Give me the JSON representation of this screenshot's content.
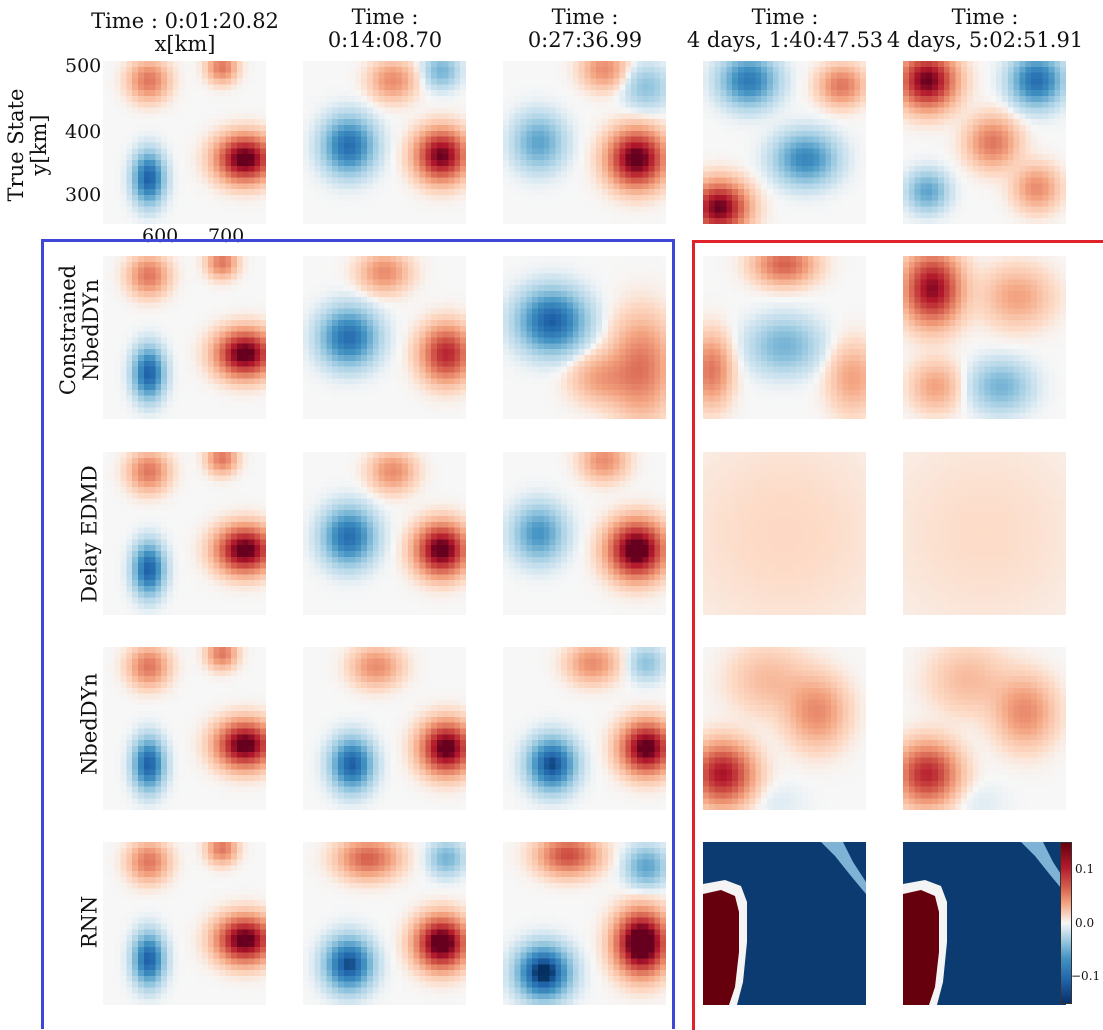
{
  "column_titles": [
    {
      "line1": "Time : 0:01:20.82",
      "line2": "x[km]"
    },
    {
      "line1": "Time :",
      "line2": "0:14:08.70"
    },
    {
      "line1": "Time :",
      "line2": "0:27:36.99"
    },
    {
      "line1": "Time :",
      "line2": "4 days, 1:40:47.53"
    },
    {
      "line1": "Time :",
      "line2": "4 days, 5:02:51.91"
    }
  ],
  "row_labels": {
    "true_state": {
      "line1": "True State",
      "line2": "y[km]"
    },
    "constrained": {
      "line1": "Constrained",
      "line2": "NbedDYn"
    },
    "delay_edmd": "Delay EDMD",
    "nbeddyn": "NbedDYn",
    "rnn": "RNN"
  },
  "colors": {
    "short_term_box": "#3f48d6",
    "long_term_box": "#e0232b",
    "cmap_low": "#08306b",
    "cmap_mid": "#f7f7f7",
    "cmap_high": "#67000d"
  },
  "chart_data": {
    "type": "heatmap",
    "colormap": "RdBu_r",
    "grid_size": [
      28,
      28
    ],
    "x_axis": {
      "label": "x[km]",
      "ticks": [
        "600",
        "700"
      ]
    },
    "y_axis": {
      "label": "y[km]",
      "ticks": [
        "500",
        "400",
        "300"
      ]
    },
    "colorbar": {
      "ticks": [
        "0.1",
        "0.0",
        "−0.1"
      ],
      "range": [
        -0.12,
        0.12
      ]
    },
    "rows": [
      "True State",
      "Constrained NbedDYn",
      "Delay EDMD",
      "NbedDYn",
      "RNN"
    ],
    "columns": [
      "0:01:20.82",
      "0:14:08.70",
      "0:27:36.99",
      "4 days, 1:40:47.53",
      "4 days, 5:02:51.91"
    ],
    "panels": [
      [
        [
          [
            0.28,
            0.72,
            -0.1,
            0.06,
            0.1
          ],
          [
            0.87,
            0.6,
            0.13,
            0.11,
            0.09
          ],
          [
            0.28,
            0.12,
            0.05,
            0.08,
            0.08
          ],
          [
            0.73,
            0.04,
            0.05,
            0.06,
            0.06
          ]
        ],
        [
          [
            0.28,
            0.52,
            -0.09,
            0.1,
            0.11
          ],
          [
            0.85,
            0.58,
            0.12,
            0.1,
            0.1
          ],
          [
            0.55,
            0.12,
            0.04,
            0.09,
            0.08
          ],
          [
            0.85,
            0.06,
            -0.04,
            0.07,
            0.07
          ]
        ],
        [
          [
            0.22,
            0.5,
            -0.05,
            0.1,
            0.11
          ],
          [
            0.82,
            0.6,
            0.13,
            0.11,
            0.11
          ],
          [
            0.62,
            0.05,
            0.04,
            0.09,
            0.08
          ],
          [
            0.88,
            0.16,
            -0.03,
            0.09,
            0.09
          ]
        ],
        [
          [
            0.1,
            0.9,
            0.12,
            0.11,
            0.1
          ],
          [
            0.28,
            0.12,
            -0.08,
            0.11,
            0.1
          ],
          [
            0.63,
            0.6,
            -0.07,
            0.12,
            0.1
          ],
          [
            0.85,
            0.15,
            0.05,
            0.09,
            0.08
          ]
        ],
        [
          [
            0.15,
            0.12,
            0.12,
            0.11,
            0.11
          ],
          [
            0.82,
            0.12,
            -0.09,
            0.1,
            0.1
          ],
          [
            0.55,
            0.5,
            0.05,
            0.1,
            0.1
          ],
          [
            0.15,
            0.8,
            -0.05,
            0.08,
            0.08
          ],
          [
            0.82,
            0.78,
            0.04,
            0.09,
            0.09
          ]
        ]
      ],
      [
        [
          [
            0.28,
            0.72,
            -0.1,
            0.06,
            0.1
          ],
          [
            0.87,
            0.6,
            0.13,
            0.11,
            0.09
          ],
          [
            0.28,
            0.12,
            0.05,
            0.08,
            0.08
          ],
          [
            0.73,
            0.04,
            0.05,
            0.06,
            0.06
          ]
        ],
        [
          [
            0.28,
            0.5,
            -0.09,
            0.11,
            0.11
          ],
          [
            0.88,
            0.6,
            0.09,
            0.1,
            0.11
          ],
          [
            0.5,
            0.1,
            0.04,
            0.1,
            0.08
          ]
        ],
        [
          [
            0.3,
            0.4,
            -0.1,
            0.13,
            0.12
          ],
          [
            0.85,
            0.68,
            0.05,
            0.12,
            0.2
          ],
          [
            0.6,
            0.75,
            0.03,
            0.12,
            0.1
          ]
        ],
        [
          [
            0.5,
            0.05,
            0.06,
            0.12,
            0.08
          ],
          [
            0.5,
            0.55,
            -0.04,
            0.14,
            0.11
          ],
          [
            0.05,
            0.7,
            0.05,
            0.08,
            0.14
          ],
          [
            0.92,
            0.75,
            0.03,
            0.1,
            0.14
          ]
        ],
        [
          [
            0.18,
            0.2,
            0.11,
            0.11,
            0.14
          ],
          [
            0.6,
            0.8,
            -0.04,
            0.12,
            0.1
          ],
          [
            0.7,
            0.25,
            0.03,
            0.14,
            0.12
          ],
          [
            0.2,
            0.8,
            0.03,
            0.1,
            0.1
          ]
        ]
      ],
      [
        [
          [
            0.28,
            0.72,
            -0.1,
            0.06,
            0.1
          ],
          [
            0.87,
            0.6,
            0.13,
            0.11,
            0.09
          ],
          [
            0.28,
            0.12,
            0.05,
            0.08,
            0.08
          ],
          [
            0.73,
            0.04,
            0.05,
            0.06,
            0.06
          ]
        ],
        [
          [
            0.28,
            0.52,
            -0.09,
            0.1,
            0.11
          ],
          [
            0.85,
            0.6,
            0.13,
            0.1,
            0.1
          ],
          [
            0.55,
            0.12,
            0.04,
            0.09,
            0.08
          ]
        ],
        [
          [
            0.22,
            0.5,
            -0.06,
            0.1,
            0.11
          ],
          [
            0.82,
            0.6,
            0.14,
            0.11,
            0.11
          ],
          [
            0.62,
            0.05,
            0.04,
            0.09,
            0.08
          ]
        ],
        [
          [
            0.5,
            0.5,
            0.008,
            0.5,
            0.5
          ]
        ],
        [
          [
            0.5,
            0.5,
            0.007,
            0.5,
            0.5
          ]
        ]
      ],
      [
        [
          [
            0.28,
            0.72,
            -0.1,
            0.06,
            0.1
          ],
          [
            0.87,
            0.6,
            0.13,
            0.11,
            0.09
          ],
          [
            0.28,
            0.12,
            0.05,
            0.08,
            0.08
          ],
          [
            0.73,
            0.04,
            0.05,
            0.06,
            0.06
          ]
        ],
        [
          [
            0.3,
            0.72,
            -0.1,
            0.08,
            0.1
          ],
          [
            0.88,
            0.62,
            0.13,
            0.1,
            0.1
          ],
          [
            0.45,
            0.12,
            0.04,
            0.1,
            0.08
          ]
        ],
        [
          [
            0.3,
            0.72,
            -0.11,
            0.09,
            0.1
          ],
          [
            0.88,
            0.62,
            0.13,
            0.1,
            0.1
          ],
          [
            0.55,
            0.1,
            0.04,
            0.1,
            0.08
          ],
          [
            0.88,
            0.1,
            -0.03,
            0.07,
            0.07
          ]
        ],
        [
          [
            0.12,
            0.78,
            0.1,
            0.12,
            0.12
          ],
          [
            0.7,
            0.4,
            0.04,
            0.12,
            0.14
          ],
          [
            0.45,
            0.95,
            -0.005,
            0.12,
            0.08
          ],
          [
            0.4,
            0.2,
            0.02,
            0.16,
            0.14
          ]
        ],
        [
          [
            0.15,
            0.78,
            0.09,
            0.12,
            0.12
          ],
          [
            0.75,
            0.4,
            0.04,
            0.12,
            0.14
          ],
          [
            0.45,
            0.95,
            -0.005,
            0.12,
            0.08
          ],
          [
            0.4,
            0.2,
            0.02,
            0.16,
            0.14
          ]
        ]
      ],
      [
        [
          [
            0.28,
            0.72,
            -0.1,
            0.06,
            0.1
          ],
          [
            0.87,
            0.6,
            0.13,
            0.11,
            0.09
          ],
          [
            0.28,
            0.12,
            0.05,
            0.08,
            0.08
          ],
          [
            0.73,
            0.04,
            0.05,
            0.06,
            0.06
          ]
        ],
        [
          [
            0.28,
            0.75,
            -0.11,
            0.09,
            0.1
          ],
          [
            0.85,
            0.62,
            0.14,
            0.1,
            0.1
          ],
          [
            0.4,
            0.1,
            0.06,
            0.12,
            0.08
          ],
          [
            0.88,
            0.1,
            -0.04,
            0.07,
            0.07
          ]
        ],
        [
          [
            0.25,
            0.8,
            -0.13,
            0.1,
            0.1
          ],
          [
            0.85,
            0.62,
            0.16,
            0.1,
            0.12
          ],
          [
            0.4,
            0.08,
            0.07,
            0.12,
            0.08
          ],
          [
            0.88,
            0.15,
            -0.05,
            0.08,
            0.08
          ]
        ],
        [
          [
            0.5,
            0.5,
            -0.13,
            0.9,
            0.9
          ]
        ],
        [
          [
            0.5,
            0.5,
            -0.13,
            0.9,
            0.9
          ]
        ]
      ]
    ]
  }
}
